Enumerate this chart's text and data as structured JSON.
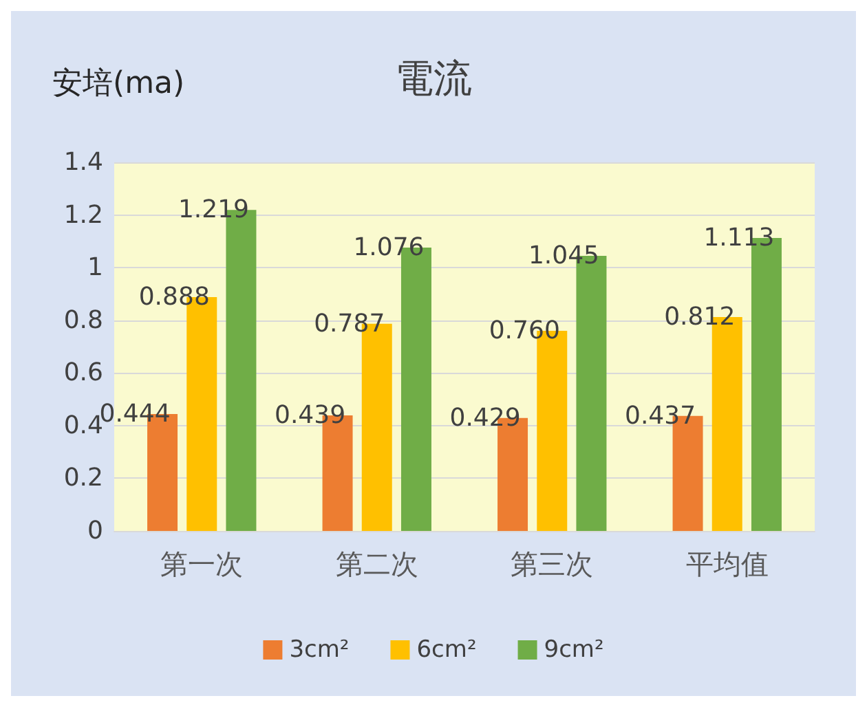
{
  "chart_data": {
    "type": "bar",
    "title": "電流",
    "ylabel": "安培(ma)",
    "categories": [
      "第一次",
      "第二次",
      "第三次",
      "平均值"
    ],
    "series": [
      {
        "name": "3cm²",
        "color": "#ed7d31",
        "values": [
          0.444,
          0.439,
          0.429,
          0.437
        ],
        "value_labels": [
          "0.444",
          "0.439",
          "0.429",
          "0.437"
        ]
      },
      {
        "name": "6cm²",
        "color": "#ffc000",
        "values": [
          0.888,
          0.787,
          0.76,
          0.812
        ],
        "value_labels": [
          "0.888",
          "0.787",
          "0.760",
          "0.812"
        ]
      },
      {
        "name": "9cm²",
        "color": "#70ad47",
        "values": [
          1.219,
          1.076,
          1.045,
          1.113
        ],
        "value_labels": [
          "1.219",
          "1.076",
          "1.045",
          "1.113"
        ]
      }
    ],
    "ylim": [
      0,
      1.4
    ],
    "yticks": [
      0,
      0.2,
      0.4,
      0.6,
      0.8,
      1,
      1.2,
      1.4
    ],
    "grid": "y",
    "legend": "bottom"
  }
}
